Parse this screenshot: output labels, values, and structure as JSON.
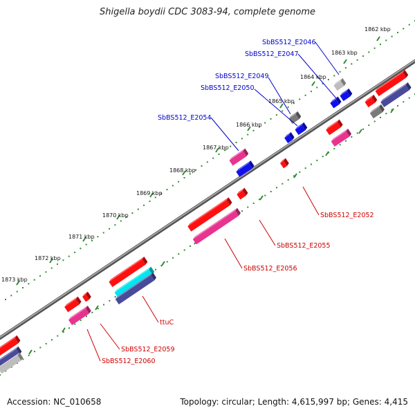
{
  "title": "Shigella boydii CDC 3083-94, complete genome",
  "footer": {
    "accession": "Accession: NC_010658",
    "topology": "Topology: circular; Length: 4,615,997 bp; Genes: 4,415"
  },
  "ruler": [
    {
      "label": "1862 kbp"
    },
    {
      "label": "1863 kbp"
    },
    {
      "label": "1864 kbp"
    },
    {
      "label": "1865 kbp"
    },
    {
      "label": "1866 kbp"
    },
    {
      "label": "1867 kbp"
    },
    {
      "label": "1868 kbp"
    },
    {
      "label": "1869 kbp"
    },
    {
      "label": "1870 kbp"
    },
    {
      "label": "1871 kbp"
    },
    {
      "label": "1872 kbp"
    },
    {
      "label": "1873 kbp"
    }
  ],
  "gene_labels": {
    "top": [
      "SbBS512_E2046",
      "SbBS512_E2047",
      "SbBS512_E2049",
      "SbBS512_E2050",
      "SbBS512_E2054"
    ],
    "bottom": [
      "SbBS512_E2052",
      "SbBS512_E2055",
      "SbBS512_E2056",
      "ttuC",
      "SbBS512_E2059",
      "SbBS512_E2060"
    ]
  },
  "colors": {
    "backbone": "#8a8a8a",
    "tick_green": "#2e8b2e",
    "gene_red": "#ff1010",
    "gene_magenta": "#e8338f",
    "gene_blue": "#1010ee",
    "gene_gray": "#7a7a7a",
    "gene_light_gray": "#bdbdbd",
    "gene_cyan": "#00e5ee",
    "gene_slate": "#4a4a9a",
    "label_blue": "#0000cc",
    "label_red": "#cc0000"
  }
}
